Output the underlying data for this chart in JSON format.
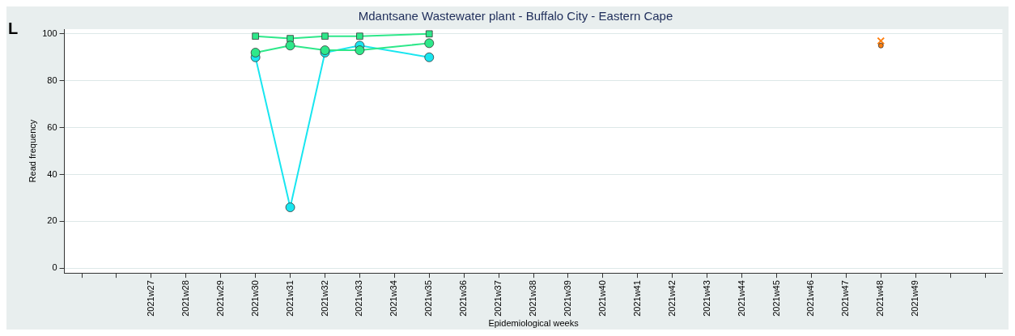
{
  "chart_data": {
    "type": "line",
    "title": "Mdantsane Wastewater plant - Buffalo City - Eastern Cape",
    "xlabel": "Epidemiological weeks",
    "ylabel": "Read frequency",
    "annotations": [
      "L"
    ],
    "categories": [
      null,
      null,
      "2021w27",
      "2021w28",
      "2021w29",
      "2021w30",
      "2021w31",
      "2021w32",
      "2021w33",
      "2021w34",
      "2021w35",
      "2021w36",
      "2021w37",
      "2021w38",
      "2021w39",
      "2021w40",
      "2021w41",
      "2021w42",
      "2021w43",
      "2021w44",
      "2021w45",
      "2021w46",
      "2021w47",
      "2021w48",
      "2021w49",
      null,
      null
    ],
    "series": [
      {
        "color": "#2ee88a",
        "marker": "square",
        "values": [
          null,
          null,
          null,
          null,
          null,
          99,
          98,
          99,
          99,
          null,
          100,
          null,
          null,
          null,
          null,
          null,
          null,
          null,
          null,
          null,
          null,
          null,
          null,
          null,
          null,
          null,
          null
        ]
      },
      {
        "color": "#19e6f0",
        "marker": "circle",
        "values": [
          null,
          null,
          null,
          null,
          null,
          90,
          26,
          92,
          95,
          null,
          90,
          null,
          null,
          null,
          null,
          null,
          null,
          null,
          null,
          null,
          null,
          null,
          null,
          null,
          null,
          null,
          null
        ]
      },
      {
        "color": "#2ee88a",
        "marker": "circle",
        "values": [
          null,
          null,
          null,
          null,
          null,
          92,
          95,
          93,
          93,
          null,
          96,
          null,
          null,
          null,
          null,
          null,
          null,
          null,
          null,
          null,
          null,
          null,
          null,
          null,
          null,
          null,
          null
        ]
      },
      {
        "type": "scatter",
        "color": "#ff7f0e",
        "marker": "cross",
        "values": [
          null,
          null,
          null,
          null,
          null,
          null,
          null,
          null,
          null,
          null,
          null,
          null,
          null,
          null,
          null,
          null,
          null,
          null,
          null,
          null,
          null,
          null,
          null,
          97,
          null,
          null,
          null
        ]
      },
      {
        "type": "scatter",
        "color": "#ff7f0e",
        "marker": "circle",
        "values": [
          null,
          null,
          null,
          null,
          null,
          null,
          null,
          null,
          null,
          null,
          null,
          null,
          null,
          null,
          null,
          null,
          null,
          null,
          null,
          null,
          null,
          null,
          null,
          95,
          null,
          null,
          null
        ]
      }
    ],
    "ylim": [
      -2,
      102
    ],
    "yticks": [
      0,
      20,
      40,
      60,
      80,
      100
    ],
    "grid": "y",
    "legend": false
  }
}
